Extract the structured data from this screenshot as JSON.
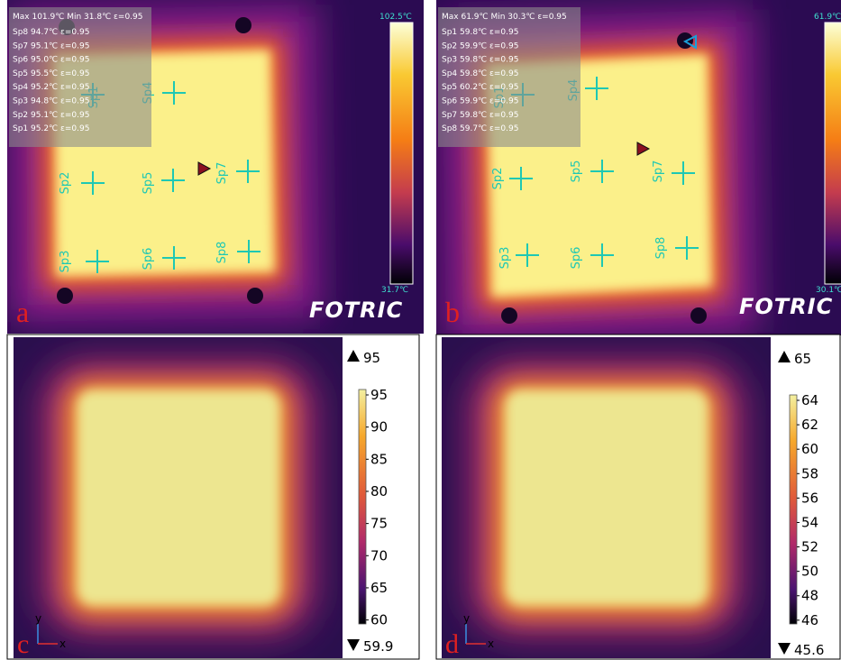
{
  "panels": [
    {
      "letter": "a",
      "header": "Max 101.9℃ Min 31.8℃ ε=0.95",
      "spot_readings": [
        "Sp8 94.7℃ ε=0.95",
        "Sp7 95.1℃ ε=0.95",
        "Sp6 95.0℃ ε=0.95",
        "Sp5 95.5℃ ε=0.95",
        "Sp4 95.2℃ ε=0.95",
        "Sp3 94.8℃ ε=0.95",
        "Sp2 95.1℃ ε=0.95",
        "Sp1 95.2℃ ε=0.95"
      ],
      "spot_labels": [
        "Sp1",
        "Sp2",
        "Sp3",
        "Sp4",
        "Sp5",
        "Sp6",
        "Sp7",
        "Sp8"
      ],
      "scale_max": "102.5℃",
      "scale_min": "31.7℃",
      "brand": "FOTRIC"
    },
    {
      "letter": "b",
      "header": "Max 61.9℃ Min 30.3℃ ε=0.95",
      "spot_readings": [
        "Sp1 59.8℃ ε=0.95",
        "Sp2 59.9℃ ε=0.95",
        "Sp3 59.8℃ ε=0.95",
        "Sp4 59.8℃ ε=0.95",
        "Sp5 60.2℃ ε=0.95",
        "Sp6 59.9℃ ε=0.95",
        "Sp7 59.8℃ ε=0.95",
        "Sp8 59.7℃ ε=0.95"
      ],
      "spot_labels": [
        "Sp1",
        "Sp2",
        "Sp3",
        "Sp4",
        "Sp5",
        "Sp6",
        "Sp7",
        "Sp8"
      ],
      "scale_max": "61.9℃",
      "scale_min": "30.1℃",
      "brand": "FOTRIC"
    },
    {
      "letter": "c",
      "max_label": 95,
      "colorbar_ticks": [
        95,
        90,
        85,
        80,
        75,
        70,
        65,
        60
      ],
      "min_label": 59.9,
      "axis_x": "x",
      "axis_y": "y"
    },
    {
      "letter": "d",
      "max_label": 65,
      "colorbar_ticks": [
        64,
        62,
        60,
        58,
        56,
        54,
        52,
        50,
        48,
        46
      ],
      "min_label": 45.6,
      "axis_x": "x",
      "axis_y": "y"
    }
  ]
}
